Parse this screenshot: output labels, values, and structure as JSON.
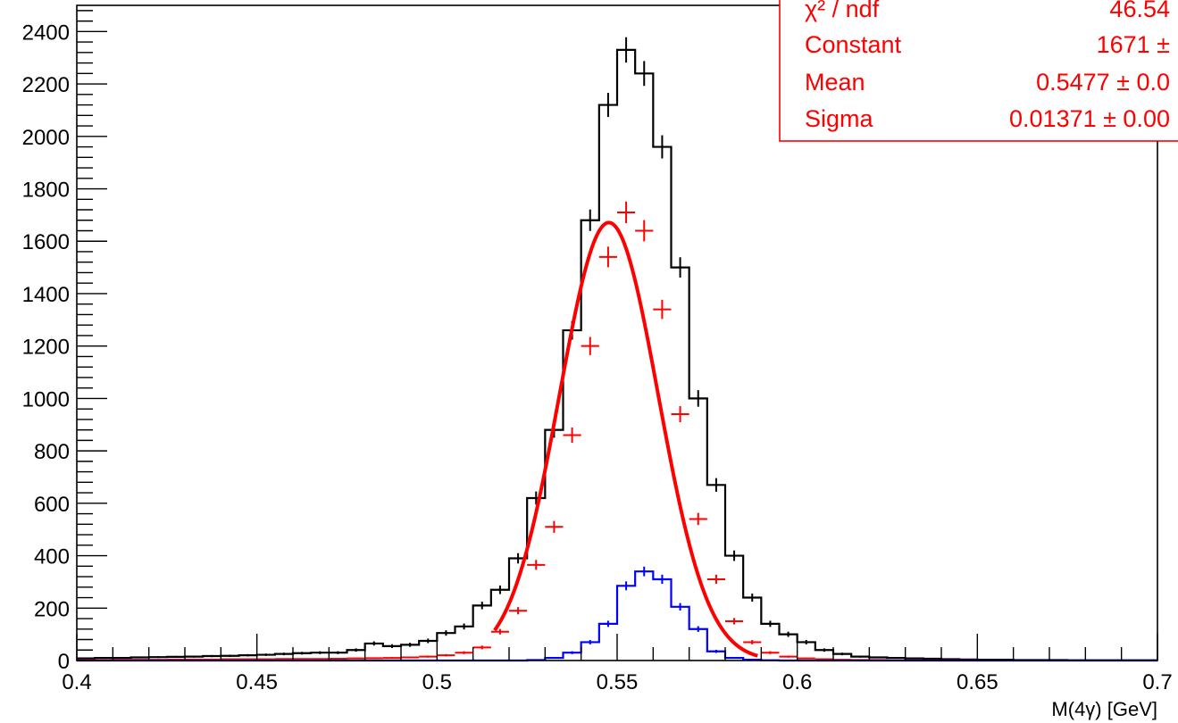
{
  "chart_data": {
    "type": "line",
    "title": "",
    "xlabel": "M(4γ) [GeV]",
    "ylabel": "",
    "xlim": [
      0.4,
      0.7
    ],
    "ylim": [
      0,
      2500
    ],
    "grid": false,
    "bin_width": 0.005,
    "x_ticks": [
      "0.4",
      "0.45",
      "0.5",
      "0.55",
      "0.6",
      "0.65",
      "0.7"
    ],
    "y_ticks": [
      "0",
      "200",
      "400",
      "600",
      "800",
      "1000",
      "1200",
      "1400",
      "1600",
      "1800",
      "2000",
      "2200",
      "2400"
    ],
    "x_tick_values": [
      0.4,
      0.45,
      0.5,
      0.55,
      0.6,
      0.65,
      0.7
    ],
    "y_tick_values": [
      0,
      200,
      400,
      600,
      800,
      1000,
      1200,
      1400,
      1600,
      1800,
      2000,
      2200,
      2400
    ],
    "series": [
      {
        "color": "#000000",
        "style": "histogram",
        "x": [
          0.4025,
          0.4075,
          0.4125,
          0.4175,
          0.4225,
          0.4275,
          0.4325,
          0.4375,
          0.4425,
          0.4475,
          0.4525,
          0.4575,
          0.4625,
          0.4675,
          0.4725,
          0.4775,
          0.4825,
          0.4875,
          0.4925,
          0.4975,
          0.5025,
          0.5075,
          0.5125,
          0.5175,
          0.5225,
          0.5275,
          0.5325,
          0.5375,
          0.5425,
          0.5475,
          0.5525,
          0.5575,
          0.5625,
          0.5675,
          0.5725,
          0.5775,
          0.5825,
          0.5875,
          0.5925,
          0.5975,
          0.6025,
          0.6075,
          0.6125,
          0.6175,
          0.6225,
          0.6275,
          0.6325,
          0.6375,
          0.6425,
          0.6475,
          0.6525,
          0.6575,
          0.6625,
          0.6675,
          0.6725,
          0.6775,
          0.6825,
          0.6875,
          0.6925,
          0.6975
        ],
        "y": [
          8,
          10,
          10,
          12,
          13,
          14,
          15,
          17,
          18,
          20,
          22,
          25,
          28,
          30,
          30,
          40,
          65,
          55,
          60,
          75,
          105,
          130,
          210,
          270,
          390,
          620,
          880,
          1260,
          1680,
          2120,
          2330,
          2240,
          1960,
          1500,
          1000,
          670,
          400,
          240,
          140,
          100,
          70,
          40,
          25,
          15,
          12,
          10,
          8,
          7,
          5,
          4,
          3,
          3,
          2,
          2,
          2,
          1,
          1,
          1,
          1,
          1
        ]
      },
      {
        "color": "#ff0000",
        "style": "points",
        "x": [
          0.4025,
          0.4075,
          0.4125,
          0.4175,
          0.4225,
          0.4275,
          0.4325,
          0.4375,
          0.4425,
          0.4475,
          0.4525,
          0.4575,
          0.4625,
          0.4675,
          0.4725,
          0.4775,
          0.4825,
          0.4875,
          0.4925,
          0.4975,
          0.5025,
          0.5075,
          0.5125,
          0.5175,
          0.5225,
          0.5275,
          0.5325,
          0.5375,
          0.5425,
          0.5475,
          0.5525,
          0.5575,
          0.5625,
          0.5675,
          0.5725,
          0.5775,
          0.5825,
          0.5875,
          0.5925,
          0.5975,
          0.6025,
          0.6075,
          0.6125,
          0.6175,
          0.6225,
          0.6275,
          0.6325,
          0.6375,
          0.6425,
          0.6475,
          0.6525,
          0.6575,
          0.6625,
          0.6675,
          0.6725,
          0.6775,
          0.6825,
          0.6875,
          0.6925,
          0.6975
        ],
        "y": [
          2,
          2,
          3,
          3,
          3,
          4,
          4,
          4,
          5,
          5,
          5,
          6,
          6,
          6,
          7,
          8,
          9,
          10,
          12,
          15,
          20,
          30,
          50,
          110,
          190,
          365,
          510,
          860,
          1200,
          1540,
          1710,
          1640,
          1340,
          940,
          540,
          310,
          150,
          70,
          30,
          15,
          8,
          5,
          3,
          2,
          2,
          1,
          1,
          1,
          1,
          1,
          0,
          0,
          0,
          0,
          0,
          0,
          0,
          0,
          0,
          0
        ]
      },
      {
        "color": "#0000ff",
        "style": "histogram",
        "x": [
          0.4025,
          0.4075,
          0.4125,
          0.4175,
          0.4225,
          0.4275,
          0.4325,
          0.4375,
          0.4425,
          0.4475,
          0.4525,
          0.4575,
          0.4625,
          0.4675,
          0.4725,
          0.4775,
          0.4825,
          0.4875,
          0.4925,
          0.4975,
          0.5025,
          0.5075,
          0.5125,
          0.5175,
          0.5225,
          0.5275,
          0.5325,
          0.5375,
          0.5425,
          0.5475,
          0.5525,
          0.5575,
          0.5625,
          0.5675,
          0.5725,
          0.5775,
          0.5825,
          0.5875,
          0.5925,
          0.5975,
          0.6025,
          0.6075,
          0.6125,
          0.6175,
          0.6225,
          0.6275,
          0.6325,
          0.6375,
          0.6425,
          0.6475,
          0.6525,
          0.6575,
          0.6625,
          0.6675,
          0.6725,
          0.6775,
          0.6825,
          0.6875,
          0.6925,
          0.6975
        ],
        "y": [
          0,
          0,
          0,
          0,
          0,
          0,
          0,
          0,
          0,
          0,
          0,
          0,
          0,
          0,
          0,
          0,
          0,
          0,
          0,
          0,
          0,
          0,
          0,
          0,
          0,
          2,
          10,
          30,
          70,
          140,
          285,
          340,
          310,
          205,
          120,
          35,
          10,
          3,
          1,
          0,
          0,
          0,
          0,
          0,
          0,
          0,
          0,
          0,
          0,
          0,
          0,
          0,
          0,
          0,
          0,
          0,
          0,
          0,
          0,
          0
        ]
      },
      {
        "color": "#ff0000",
        "style": "gaussian-fit",
        "constant": 1671,
        "mean": 0.5477,
        "sigma": 0.01371,
        "x_range": [
          0.516,
          0.589
        ]
      }
    ],
    "stats_box": {
      "position": "top-right",
      "color": "#ff0000",
      "rows": [
        {
          "label": "χ² / ndf",
          "value": "46.54"
        },
        {
          "label": "Constant",
          "value": "1671 ±"
        },
        {
          "label": "Mean",
          "value": "0.5477 ± 0.0"
        },
        {
          "label": "Sigma",
          "value": "0.01371 ± 0.00"
        }
      ]
    }
  }
}
